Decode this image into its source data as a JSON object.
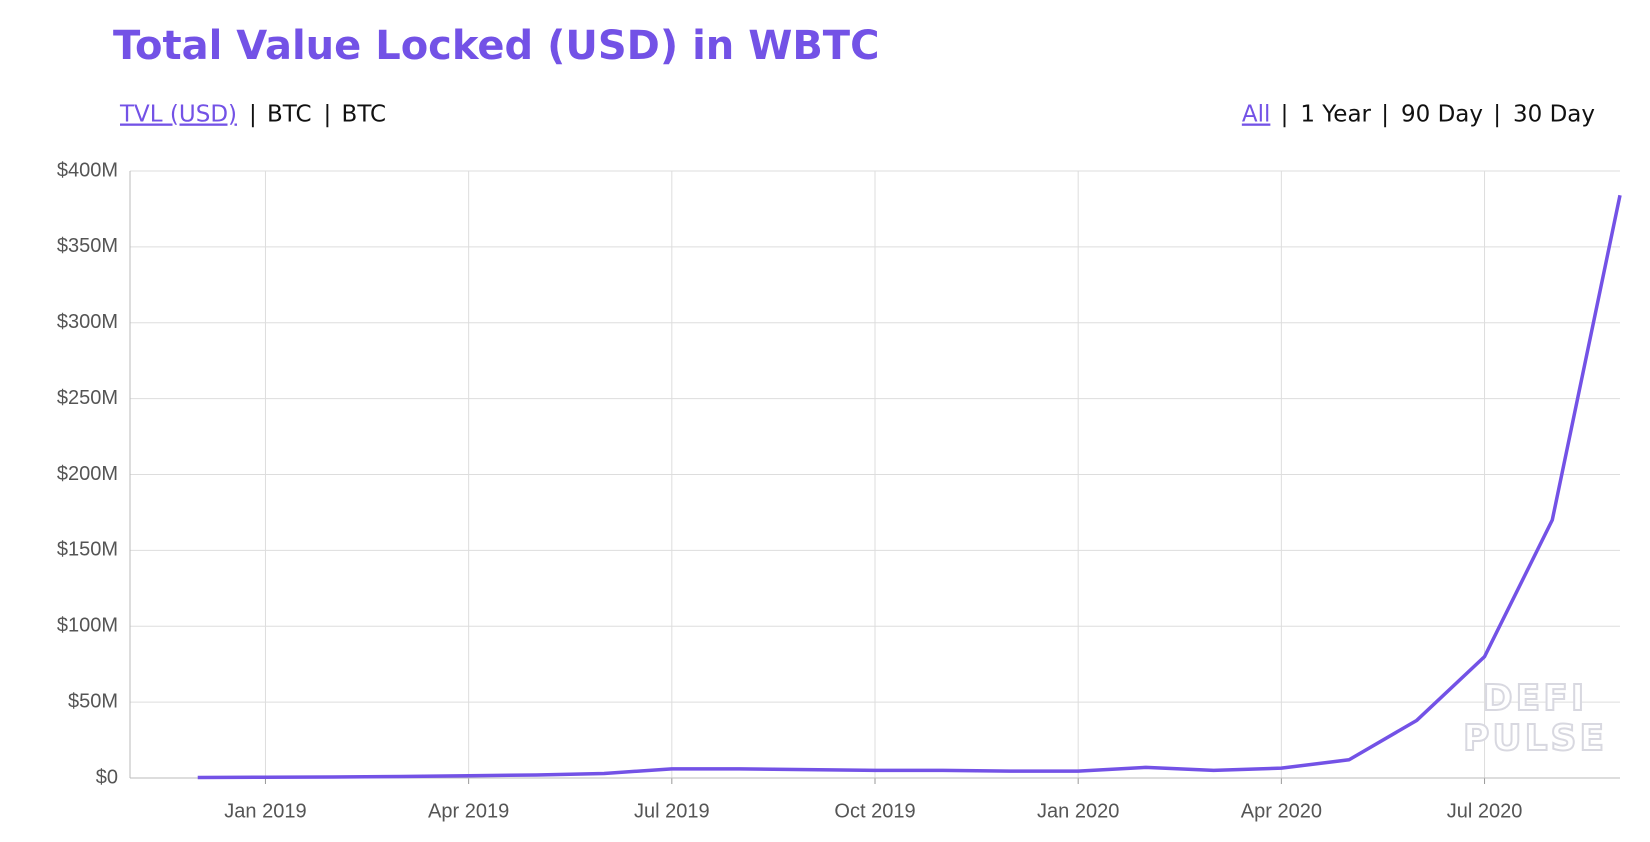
{
  "chart_data": {
    "type": "line",
    "title": "Total Value Locked (USD) in WBTC",
    "metric_tabs": [
      "TVL (USD)",
      "BTC",
      "BTC"
    ],
    "range_tabs": [
      "All",
      "1 Year",
      "90 Day",
      "30 Day"
    ],
    "watermark": [
      "DEFI",
      "PULSE"
    ],
    "x": [
      "2018-12",
      "2019-01",
      "2019-02",
      "2019-03",
      "2019-04",
      "2019-05",
      "2019-06",
      "2019-07",
      "2019-08",
      "2019-09",
      "2019-10",
      "2019-11",
      "2019-12",
      "2020-01",
      "2020-02",
      "2020-03",
      "2020-04",
      "2020-05",
      "2020-06",
      "2020-07",
      "2020-08",
      "2020-09"
    ],
    "series": [
      {
        "name": "TVL (USD)",
        "color": "#7352e6",
        "values": [
          0.3,
          0.5,
          0.7,
          1,
          1.5,
          2,
          3,
          6,
          6,
          5.5,
          5,
          5,
          4.5,
          4.5,
          7,
          5,
          6.5,
          12,
          38,
          80,
          170,
          384
        ]
      }
    ],
    "xlim": [
      "2018-11",
      "2020-09"
    ],
    "xticks": [
      {
        "value": "2019-01",
        "label": "Jan 2019"
      },
      {
        "value": "2019-04",
        "label": "Apr 2019"
      },
      {
        "value": "2019-07",
        "label": "Jul 2019"
      },
      {
        "value": "2019-10",
        "label": "Oct 2019"
      },
      {
        "value": "2020-01",
        "label": "Jan 2020"
      },
      {
        "value": "2020-04",
        "label": "Apr 2020"
      },
      {
        "value": "2020-07",
        "label": "Jul 2020"
      }
    ],
    "ylim": [
      0,
      400
    ],
    "yticks": [
      {
        "value": 0,
        "label": "$0"
      },
      {
        "value": 50,
        "label": "$50M"
      },
      {
        "value": 100,
        "label": "$100M"
      },
      {
        "value": 150,
        "label": "$150M"
      },
      {
        "value": 200,
        "label": "$200M"
      },
      {
        "value": 250,
        "label": "$250M"
      },
      {
        "value": 300,
        "label": "$300M"
      },
      {
        "value": 350,
        "label": "$350M"
      },
      {
        "value": 400,
        "label": "$400M"
      }
    ],
    "grid": true
  }
}
